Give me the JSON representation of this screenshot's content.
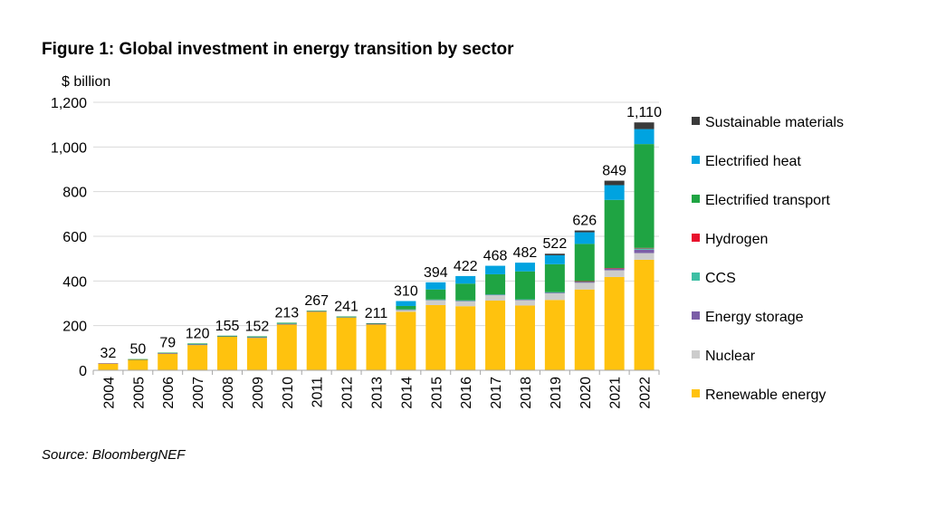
{
  "title": "Figure 1: Global investment in energy transition by sector",
  "source": "Source: BloombergNEF",
  "chart_data": {
    "type": "bar",
    "stacked": true,
    "ylabel": "$ billion",
    "ylim": [
      0,
      1200
    ],
    "yticks": [
      0,
      200,
      400,
      600,
      800,
      1000,
      1200
    ],
    "ytick_labels": [
      "0",
      "200",
      "400",
      "600",
      "800",
      "1,000",
      "1,200"
    ],
    "grid": true,
    "legend_position": "right",
    "categories": [
      "2004",
      "2005",
      "2006",
      "2007",
      "2008",
      "2009",
      "2010",
      "2011",
      "2012",
      "2013",
      "2014",
      "2015",
      "2016",
      "2017",
      "2018",
      "2019",
      "2020",
      "2021",
      "2022"
    ],
    "totals": [
      32,
      50,
      79,
      120,
      155,
      152,
      213,
      267,
      241,
      211,
      310,
      394,
      422,
      468,
      482,
      522,
      626,
      849,
      1110
    ],
    "total_labels": [
      "32",
      "50",
      "79",
      "120",
      "155",
      "152",
      "213",
      "267",
      "241",
      "211",
      "310",
      "394",
      "422",
      "468",
      "482",
      "522",
      "626",
      "849",
      "1,110"
    ],
    "series": [
      {
        "name": "Renewable energy",
        "color": "#FFC20E",
        "values": [
          30,
          47,
          74,
          113,
          150,
          145,
          205,
          262,
          236,
          205,
          262,
          292,
          287,
          312,
          290,
          315,
          362,
          418,
          495
        ]
      },
      {
        "name": "Nuclear",
        "color": "#CCCCCC",
        "values": [
          0,
          0,
          0,
          0,
          0,
          0,
          0,
          0,
          0,
          0,
          8,
          22,
          22,
          24,
          24,
          30,
          30,
          30,
          30
        ]
      },
      {
        "name": "Energy storage",
        "color": "#7B5EA7",
        "values": [
          2,
          2,
          3,
          4,
          3,
          4,
          4,
          3,
          3,
          4,
          2,
          2,
          3,
          3,
          3,
          4,
          5,
          7,
          15
        ]
      },
      {
        "name": "CCS",
        "color": "#3DBFA4",
        "values": [
          0,
          0,
          0,
          1,
          1,
          1,
          1,
          0,
          1,
          0,
          1,
          1,
          1,
          1,
          1,
          1,
          1,
          2,
          6
        ]
      },
      {
        "name": "Hydrogen",
        "color": "#E8112D",
        "values": [
          0,
          0,
          0,
          0,
          0,
          0,
          0,
          0,
          0,
          0,
          0,
          0,
          0,
          0,
          0,
          0,
          1,
          1,
          2
        ]
      },
      {
        "name": "Electrified transport",
        "color": "#1FA443",
        "values": [
          0,
          1,
          2,
          2,
          1,
          2,
          3,
          2,
          1,
          2,
          15,
          45,
          75,
          90,
          125,
          125,
          167,
          305,
          465
        ]
      },
      {
        "name": "Electrified heat",
        "color": "#00A3E0",
        "values": [
          0,
          0,
          0,
          0,
          0,
          0,
          0,
          0,
          0,
          0,
          22,
          32,
          34,
          38,
          39,
          40,
          52,
          66,
          67
        ]
      },
      {
        "name": "Sustainable materials",
        "color": "#3A3A3A",
        "values": [
          0,
          0,
          0,
          0,
          0,
          0,
          0,
          0,
          0,
          0,
          0,
          0,
          0,
          0,
          0,
          7,
          8,
          20,
          30
        ]
      }
    ],
    "legend_order": [
      "Sustainable materials",
      "Electrified heat",
      "Electrified transport",
      "Hydrogen",
      "CCS",
      "Energy storage",
      "Nuclear",
      "Renewable energy"
    ],
    "gridline_color": "#D9D9D9",
    "axis_color": "#A6A6A6"
  }
}
